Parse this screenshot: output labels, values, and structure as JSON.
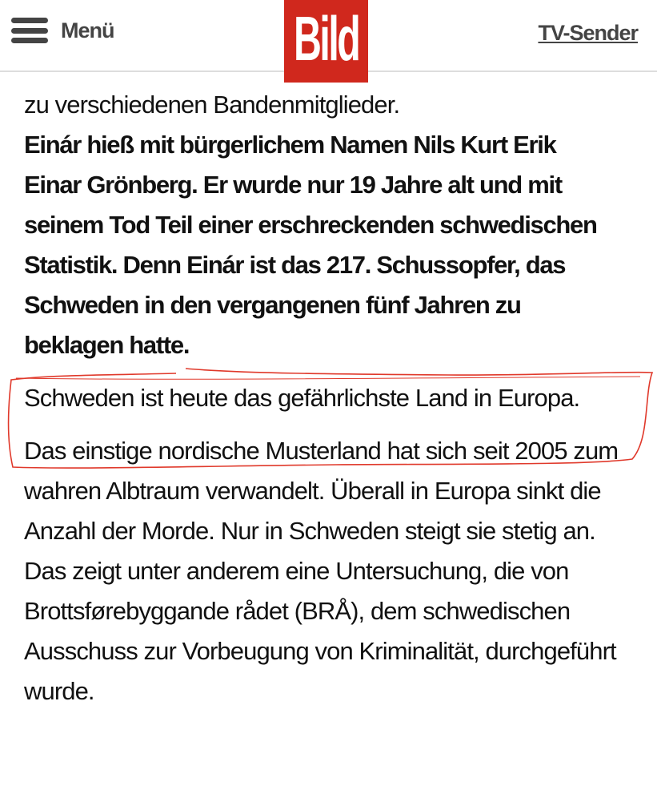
{
  "header": {
    "menu_label": "Menü",
    "logo_text": "Bild",
    "tv_link": "TV-Sender",
    "brand_color": "#d0281d"
  },
  "article": {
    "top_cut": "zu verschiedenen Bandenmitglieder.",
    "intro": "Einár hieß mit bürgerlichem Namen Nils Kurt Erik Einar Grönberg. Er wurde nur 19 Jahre alt und mit seinem Tod Teil einer erschreckenden schwedischen Statistik. Denn Einár ist das 217. Schussopfer, das Schweden in den vergangenen fünf Jahren zu beklagen hatte.",
    "highlighted": "Schweden ist heute das gefährlichste Land in Europa.",
    "body": "Das einstige nordische Musterland hat sich seit 2005 zum wahren Albtraum verwandelt. Überall in Europa sinkt die Anzahl der Morde. Nur in Schweden steigt sie stetig an. Das zeigt unter anderem eine Untersuchung, die von Brottsførebyggande rådet (BRÅ), dem schwedischen Ausschuss zur Vorbeugung von Kriminalität, durchgeführt wurde."
  },
  "annotation_color": "#e0392b"
}
